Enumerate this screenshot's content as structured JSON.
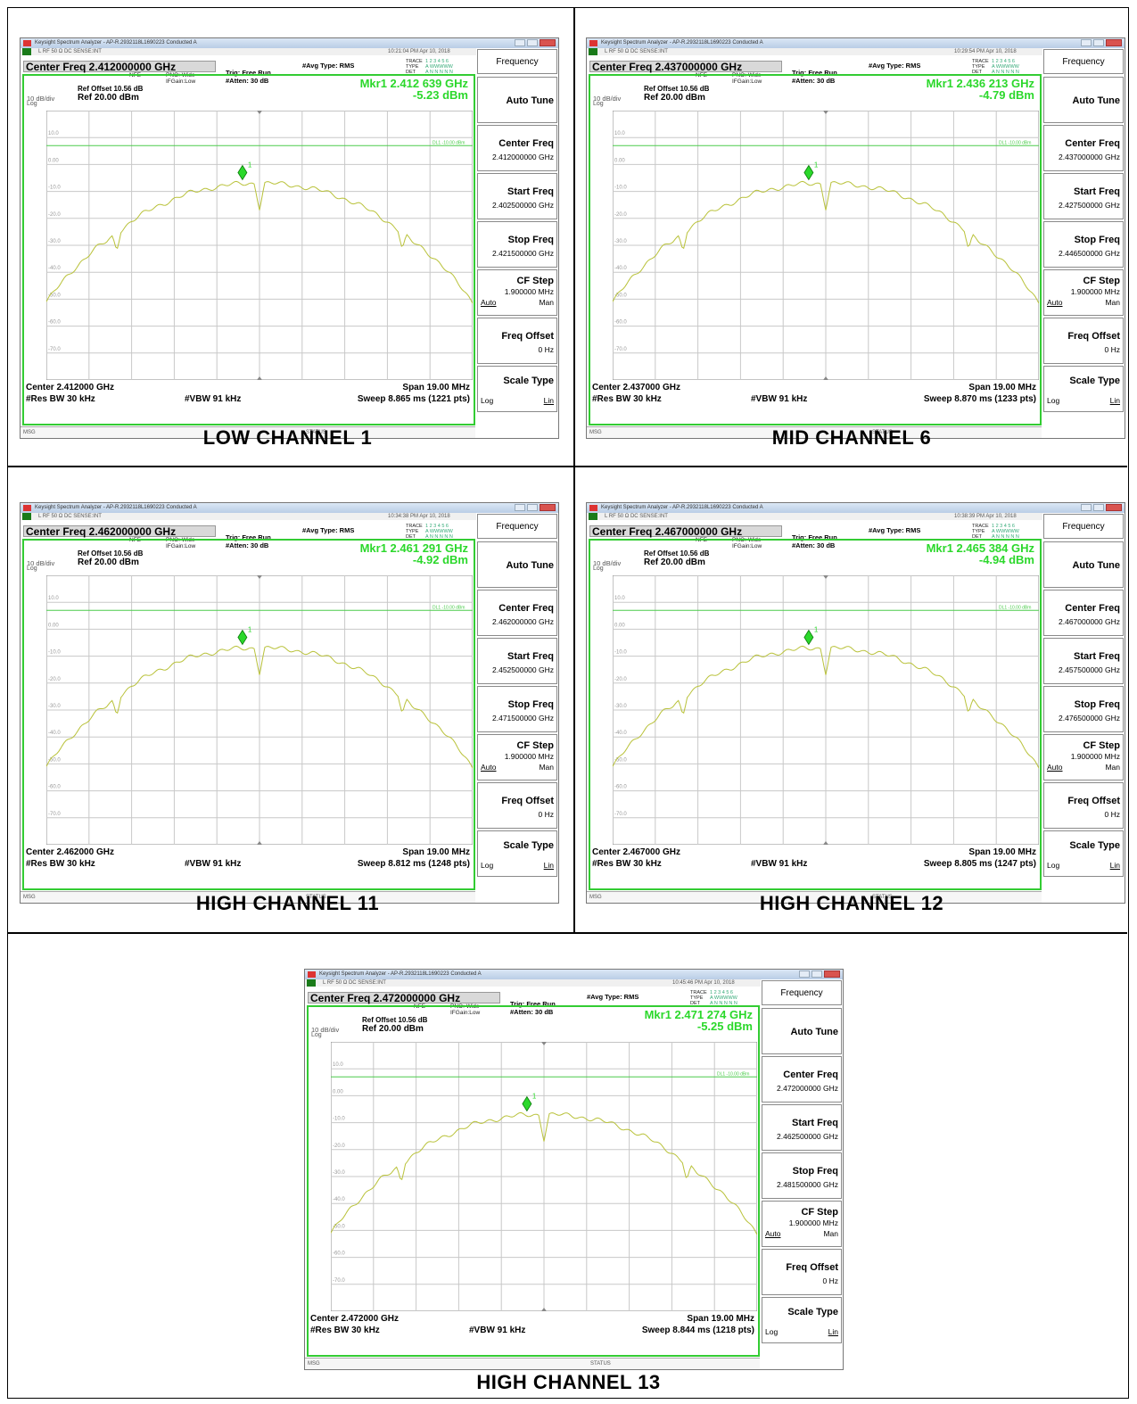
{
  "panels": [
    {
      "caption": "LOW CHANNEL 1",
      "window_title": "Keysight Spectrum Analyzer - AP-R.2932118L1690223 Conducted A",
      "toolbar_text": "L     RF   50 Ω   DC            SENSE:INT",
      "timestamp": "10:21:04 PM Apr 10, 2018",
      "center_freq_title": "Center Freq 2.412000000 GHz",
      "nfe": "NFE",
      "pno": "PNO: Wide",
      "ifgain": "IFGain:Low",
      "trig": "Trig: Free Run",
      "atten": "#Atten: 30 dB",
      "avg_type": "#Avg Type: RMS",
      "trace_labels": [
        "TRACE",
        "TYPE",
        "DET"
      ],
      "trace_values": [
        "1 2 3 4 5 6",
        "A WWWWW",
        "A N N N N N"
      ],
      "ref_offset": "Ref Offset 10.56 dB",
      "scale_div": "10 dB/div",
      "scale_log": "Log",
      "ref_level": "Ref 20.00 dBm",
      "marker_freq": "Mkr1 2.412 639 GHz",
      "marker_amp": "-5.23 dBm",
      "marker_index": "1",
      "y_ticks": [
        "10.0",
        "0.00",
        "-10.0",
        "-20.0",
        "-30.0",
        "-40.0",
        "-50.0",
        "-60.0",
        "-70.0"
      ],
      "limit_label": "DL1 -10.00 dBm",
      "center_label": "Center 2.412000 GHz",
      "span_label": "Span 19.00 MHz",
      "res_bw": "#Res BW 30 kHz",
      "vbw": "#VBW 91 kHz",
      "sweep": "Sweep  8.865 ms (1221 pts)",
      "msg_label": "MSG",
      "status_label": "STATUS",
      "menu": {
        "title": "Frequency",
        "auto_tune": "Auto Tune",
        "center_freq": "Center Freq",
        "center_freq_val": "2.412000000 GHz",
        "start_freq": "Start Freq",
        "start_freq_val": "2.402500000 GHz",
        "stop_freq": "Stop Freq",
        "stop_freq_val": "2.421500000 GHz",
        "cf_step": "CF Step",
        "cf_step_val": "1.900000 MHz",
        "cf_auto": "Auto",
        "cf_man": "Man",
        "freq_offset": "Freq Offset",
        "freq_offset_val": "0 Hz",
        "scale_type": "Scale Type",
        "scale_log": "Log",
        "scale_lin": "Lin"
      }
    },
    {
      "caption": "MID CHANNEL 6",
      "window_title": "Keysight Spectrum Analyzer - AP-R.2932118L1690223 Conducted A",
      "toolbar_text": "L     RF   50 Ω   DC            SENSE:INT",
      "timestamp": "10:29:54 PM Apr 10, 2018",
      "center_freq_title": "Center Freq 2.437000000 GHz",
      "nfe": "NFE",
      "pno": "PNO: Wide",
      "ifgain": "IFGain:Low",
      "trig": "Trig: Free Run",
      "atten": "#Atten: 30 dB",
      "avg_type": "#Avg Type: RMS",
      "trace_labels": [
        "TRACE",
        "TYPE",
        "DET"
      ],
      "trace_values": [
        "1 2 3 4 5 6",
        "A WWWWW",
        "A N N N N N"
      ],
      "ref_offset": "Ref Offset 10.56 dB",
      "scale_div": "10 dB/div",
      "scale_log": "Log",
      "ref_level": "Ref 20.00 dBm",
      "marker_freq": "Mkr1 2.436 213 GHz",
      "marker_amp": "-4.79 dBm",
      "marker_index": "1",
      "y_ticks": [
        "10.0",
        "0.00",
        "-10.0",
        "-20.0",
        "-30.0",
        "-40.0",
        "-50.0",
        "-60.0",
        "-70.0"
      ],
      "limit_label": "DL1 -10.00 dBm",
      "center_label": "Center 2.437000 GHz",
      "span_label": "Span 19.00 MHz",
      "res_bw": "#Res BW 30 kHz",
      "vbw": "#VBW 91 kHz",
      "sweep": "Sweep  8.870 ms (1233 pts)",
      "msg_label": "MSG",
      "status_label": "STATUS",
      "menu": {
        "title": "Frequency",
        "auto_tune": "Auto Tune",
        "center_freq": "Center Freq",
        "center_freq_val": "2.437000000 GHz",
        "start_freq": "Start Freq",
        "start_freq_val": "2.427500000 GHz",
        "stop_freq": "Stop Freq",
        "stop_freq_val": "2.446500000 GHz",
        "cf_step": "CF Step",
        "cf_step_val": "1.900000 MHz",
        "cf_auto": "Auto",
        "cf_man": "Man",
        "freq_offset": "Freq Offset",
        "freq_offset_val": "0 Hz",
        "scale_type": "Scale Type",
        "scale_log": "Log",
        "scale_lin": "Lin"
      }
    },
    {
      "caption": "HIGH CHANNEL 11",
      "window_title": "Keysight Spectrum Analyzer - AP-R.2932118L1690223 Conducted A",
      "toolbar_text": "L     RF   50 Ω   DC            SENSE:INT",
      "timestamp": "10:34:38 PM Apr 10, 2018",
      "center_freq_title": "Center Freq 2.462000000 GHz",
      "nfe": "NFE",
      "pno": "PNO: Wide",
      "ifgain": "IFGain:Low",
      "trig": "Trig: Free Run",
      "atten": "#Atten: 30 dB",
      "avg_type": "#Avg Type: RMS",
      "trace_labels": [
        "TRACE",
        "TYPE",
        "DET"
      ],
      "trace_values": [
        "1 2 3 4 5 6",
        "A WWWWW",
        "A N N N N N"
      ],
      "ref_offset": "Ref Offset 10.56 dB",
      "scale_div": "10 dB/div",
      "scale_log": "Log",
      "ref_level": "Ref 20.00 dBm",
      "marker_freq": "Mkr1 2.461 291 GHz",
      "marker_amp": "-4.92 dBm",
      "marker_index": "1",
      "y_ticks": [
        "10.0",
        "0.00",
        "-10.0",
        "-20.0",
        "-30.0",
        "-40.0",
        "-50.0",
        "-60.0",
        "-70.0"
      ],
      "limit_label": "DL1 -10.00 dBm",
      "center_label": "Center 2.462000 GHz",
      "span_label": "Span 19.00 MHz",
      "res_bw": "#Res BW 30 kHz",
      "vbw": "#VBW 91 kHz",
      "sweep": "Sweep  8.812 ms (1248 pts)",
      "msg_label": "MSG",
      "status_label": "STATUS",
      "menu": {
        "title": "Frequency",
        "auto_tune": "Auto Tune",
        "center_freq": "Center Freq",
        "center_freq_val": "2.462000000 GHz",
        "start_freq": "Start Freq",
        "start_freq_val": "2.452500000 GHz",
        "stop_freq": "Stop Freq",
        "stop_freq_val": "2.471500000 GHz",
        "cf_step": "CF Step",
        "cf_step_val": "1.900000 MHz",
        "cf_auto": "Auto",
        "cf_man": "Man",
        "freq_offset": "Freq Offset",
        "freq_offset_val": "0 Hz",
        "scale_type": "Scale Type",
        "scale_log": "Log",
        "scale_lin": "Lin"
      }
    },
    {
      "caption": "HIGH CHANNEL 12",
      "window_title": "Keysight Spectrum Analyzer - AP-R.2932118L1690223 Conducted A",
      "toolbar_text": "L     RF   50 Ω   DC            SENSE:INT",
      "timestamp": "10:38:39 PM Apr 10, 2018",
      "center_freq_title": "Center Freq 2.467000000 GHz",
      "nfe": "NFE",
      "pno": "PNO: Wide",
      "ifgain": "IFGain:Low",
      "trig": "Trig: Free Run",
      "atten": "#Atten: 30 dB",
      "avg_type": "#Avg Type: RMS",
      "trace_labels": [
        "TRACE",
        "TYPE",
        "DET"
      ],
      "trace_values": [
        "1 2 3 4 5 6",
        "A WWWWW",
        "A N N N N N"
      ],
      "ref_offset": "Ref Offset 10.56 dB",
      "scale_div": "10 dB/div",
      "scale_log": "Log",
      "ref_level": "Ref 20.00 dBm",
      "marker_freq": "Mkr1 2.465 384 GHz",
      "marker_amp": "-4.94 dBm",
      "marker_index": "1",
      "y_ticks": [
        "10.0",
        "0.00",
        "-10.0",
        "-20.0",
        "-30.0",
        "-40.0",
        "-50.0",
        "-60.0",
        "-70.0"
      ],
      "limit_label": "DL1 -10.00 dBm",
      "center_label": "Center 2.467000 GHz",
      "span_label": "Span 19.00 MHz",
      "res_bw": "#Res BW 30 kHz",
      "vbw": "#VBW 91 kHz",
      "sweep": "Sweep  8.805 ms (1247 pts)",
      "msg_label": "MSG",
      "status_label": "STATUS",
      "menu": {
        "title": "Frequency",
        "auto_tune": "Auto Tune",
        "center_freq": "Center Freq",
        "center_freq_val": "2.467000000 GHz",
        "start_freq": "Start Freq",
        "start_freq_val": "2.457500000 GHz",
        "stop_freq": "Stop Freq",
        "stop_freq_val": "2.476500000 GHz",
        "cf_step": "CF Step",
        "cf_step_val": "1.900000 MHz",
        "cf_auto": "Auto",
        "cf_man": "Man",
        "freq_offset": "Freq Offset",
        "freq_offset_val": "0 Hz",
        "scale_type": "Scale Type",
        "scale_log": "Log",
        "scale_lin": "Lin"
      }
    },
    {
      "caption": "HIGH CHANNEL 13",
      "window_title": "Keysight Spectrum Analyzer - AP-R.2932118L1690223 Conducted A",
      "toolbar_text": "L     RF   50 Ω   DC            SENSE:INT",
      "timestamp": "10:45:46 PM Apr 10, 2018",
      "center_freq_title": "Center Freq 2.472000000 GHz",
      "nfe": "NFE",
      "pno": "PNO: Wide",
      "ifgain": "IFGain:Low",
      "trig": "Trig: Free Run",
      "atten": "#Atten: 30 dB",
      "avg_type": "#Avg Type: RMS",
      "trace_labels": [
        "TRACE",
        "TYPE",
        "DET"
      ],
      "trace_values": [
        "1 2 3 4 5 6",
        "A WWWWW",
        "A N N N N N"
      ],
      "ref_offset": "Ref Offset 10.56 dB",
      "scale_div": "10 dB/div",
      "scale_log": "Log",
      "ref_level": "Ref 20.00 dBm",
      "marker_freq": "Mkr1 2.471 274 GHz",
      "marker_amp": "-5.25 dBm",
      "marker_index": "1",
      "y_ticks": [
        "10.0",
        "0.00",
        "-10.0",
        "-20.0",
        "-30.0",
        "-40.0",
        "-50.0",
        "-60.0",
        "-70.0"
      ],
      "limit_label": "DL1 -10.00 dBm",
      "center_label": "Center 2.472000 GHz",
      "span_label": "Span 19.00 MHz",
      "res_bw": "#Res BW 30 kHz",
      "vbw": "#VBW 91 kHz",
      "sweep": "Sweep  8.844 ms (1218 pts)",
      "msg_label": "MSG",
      "status_label": "STATUS",
      "menu": {
        "title": "Frequency",
        "auto_tune": "Auto Tune",
        "center_freq": "Center Freq",
        "center_freq_val": "2.472000000 GHz",
        "start_freq": "Start Freq",
        "start_freq_val": "2.462500000 GHz",
        "stop_freq": "Stop Freq",
        "stop_freq_val": "2.481500000 GHz",
        "cf_step": "CF Step",
        "cf_step_val": "1.900000 MHz",
        "cf_auto": "Auto",
        "cf_man": "Man",
        "freq_offset": "Freq Offset",
        "freq_offset_val": "0 Hz",
        "scale_type": "Scale Type",
        "scale_log": "Log",
        "scale_lin": "Lin"
      }
    }
  ],
  "colors": {
    "trace": "#b9c23a",
    "frame": "#33cc33",
    "marker": "#2bd82b",
    "grid": "#c8c8c8"
  }
}
